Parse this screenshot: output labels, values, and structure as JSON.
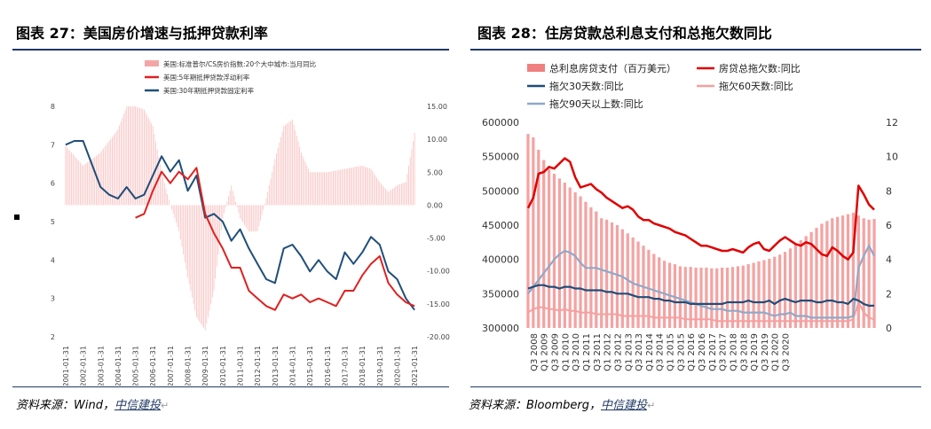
{
  "left": {
    "title": "图表 27：美国房价增速与抵押贷款利率",
    "source_label": "资料来源：Wind，",
    "source_brand": "中信建投",
    "chart_data": {
      "type": "line",
      "legend": [
        {
          "name": "美国:标准普尔/CS房价指数:20个大中城市:当月同比",
          "color": "#f4a6a6",
          "style": "bar"
        },
        {
          "name": "美国:5年期抵押贷款浮动利率",
          "color": "#e02020",
          "style": "line"
        },
        {
          "name": "美国:30年期抵押贷款固定利率",
          "color": "#1f4e79",
          "style": "line"
        }
      ],
      "legend_position": "top",
      "x_ticks": [
        "2001-01-31",
        "2002-01-31",
        "2003-01-31",
        "2004-01-31",
        "2005-01-31",
        "2006-01-31",
        "2007-01-31",
        "2008-01-31",
        "2009-01-31",
        "2010-01-31",
        "2011-01-31",
        "2012-01-31",
        "2013-01-31",
        "2014-01-31",
        "2015-01-31",
        "2016-01-31",
        "2017-01-31",
        "2018-01-31",
        "2019-01-31",
        "2020-01-31",
        "2021-01-31"
      ],
      "y_left": {
        "min": 2,
        "max": 8,
        "ticks": [
          2,
          3,
          4,
          5,
          6,
          7,
          8
        ]
      },
      "y_right": {
        "min": -20,
        "max": 15,
        "ticks": [
          "-20.00",
          "-15.00",
          "-10.00",
          "-5.00",
          "0.00",
          "5.00",
          "10.00",
          "15.00"
        ]
      },
      "hpi_yoy": [
        [
          2001.0,
          9.0
        ],
        [
          2002.0,
          6.0
        ],
        [
          2003.0,
          8.0
        ],
        [
          2004.0,
          11.5
        ],
        [
          2004.5,
          15.0
        ],
        [
          2005.0,
          15.0
        ],
        [
          2005.5,
          14.5
        ],
        [
          2006.0,
          12.0
        ],
        [
          2006.5,
          5.0
        ],
        [
          2007.0,
          0.0
        ],
        [
          2007.5,
          -4.0
        ],
        [
          2008.0,
          -11.0
        ],
        [
          2008.5,
          -17.0
        ],
        [
          2009.0,
          -19.0
        ],
        [
          2009.5,
          -13.0
        ],
        [
          2010.0,
          -2.0
        ],
        [
          2010.5,
          3.0
        ],
        [
          2011.0,
          -2.0
        ],
        [
          2011.5,
          -4.0
        ],
        [
          2012.0,
          -4.0
        ],
        [
          2012.5,
          1.0
        ],
        [
          2013.0,
          7.0
        ],
        [
          2013.5,
          12.0
        ],
        [
          2014.0,
          13.0
        ],
        [
          2014.5,
          8.0
        ],
        [
          2015.0,
          5.0
        ],
        [
          2016.0,
          5.0
        ],
        [
          2017.0,
          5.5
        ],
        [
          2018.0,
          6.0
        ],
        [
          2018.5,
          5.5
        ],
        [
          2019.0,
          3.5
        ],
        [
          2019.5,
          2.0
        ],
        [
          2020.0,
          3.0
        ],
        [
          2020.5,
          3.5
        ],
        [
          2021.0,
          11.0
        ]
      ],
      "rate_5y_arm": [
        [
          2005.0,
          5.1
        ],
        [
          2005.5,
          5.2
        ],
        [
          2006.0,
          5.8
        ],
        [
          2006.5,
          6.3
        ],
        [
          2007.0,
          6.0
        ],
        [
          2007.5,
          6.3
        ],
        [
          2008.0,
          6.1
        ],
        [
          2008.5,
          6.4
        ],
        [
          2009.0,
          5.2
        ],
        [
          2009.5,
          4.7
        ],
        [
          2010.0,
          4.3
        ],
        [
          2010.5,
          3.8
        ],
        [
          2011.0,
          3.8
        ],
        [
          2011.5,
          3.2
        ],
        [
          2012.0,
          3.0
        ],
        [
          2012.5,
          2.8
        ],
        [
          2013.0,
          2.7
        ],
        [
          2013.5,
          3.1
        ],
        [
          2014.0,
          3.0
        ],
        [
          2014.5,
          3.1
        ],
        [
          2015.0,
          2.9
        ],
        [
          2015.5,
          3.0
        ],
        [
          2016.0,
          2.9
        ],
        [
          2016.5,
          2.8
        ],
        [
          2017.0,
          3.2
        ],
        [
          2017.5,
          3.2
        ],
        [
          2018.0,
          3.6
        ],
        [
          2018.5,
          3.9
        ],
        [
          2019.0,
          4.1
        ],
        [
          2019.5,
          3.4
        ],
        [
          2020.0,
          3.1
        ],
        [
          2020.5,
          2.9
        ],
        [
          2021.0,
          2.8
        ]
      ],
      "rate_30y_fixed": [
        [
          2001.0,
          7.0
        ],
        [
          2001.5,
          7.1
        ],
        [
          2002.0,
          7.1
        ],
        [
          2002.5,
          6.5
        ],
        [
          2003.0,
          5.9
        ],
        [
          2003.5,
          5.7
        ],
        [
          2004.0,
          5.6
        ],
        [
          2004.5,
          5.9
        ],
        [
          2005.0,
          5.6
        ],
        [
          2005.5,
          5.7
        ],
        [
          2006.0,
          6.2
        ],
        [
          2006.5,
          6.7
        ],
        [
          2007.0,
          6.3
        ],
        [
          2007.5,
          6.6
        ],
        [
          2008.0,
          5.8
        ],
        [
          2008.5,
          6.2
        ],
        [
          2009.0,
          5.1
        ],
        [
          2009.5,
          5.2
        ],
        [
          2010.0,
          5.0
        ],
        [
          2010.5,
          4.5
        ],
        [
          2011.0,
          4.8
        ],
        [
          2011.5,
          4.3
        ],
        [
          2012.0,
          3.9
        ],
        [
          2012.5,
          3.5
        ],
        [
          2013.0,
          3.4
        ],
        [
          2013.5,
          4.3
        ],
        [
          2014.0,
          4.4
        ],
        [
          2014.5,
          4.1
        ],
        [
          2015.0,
          3.7
        ],
        [
          2015.5,
          4.0
        ],
        [
          2016.0,
          3.7
        ],
        [
          2016.5,
          3.5
        ],
        [
          2017.0,
          4.2
        ],
        [
          2017.5,
          3.9
        ],
        [
          2018.0,
          4.2
        ],
        [
          2018.5,
          4.6
        ],
        [
          2019.0,
          4.4
        ],
        [
          2019.5,
          3.7
        ],
        [
          2020.0,
          3.5
        ],
        [
          2020.5,
          3.0
        ],
        [
          2021.0,
          2.7
        ]
      ]
    }
  },
  "right": {
    "title": "图表 28：住房贷款总利息支付和总拖欠数同比",
    "source_label": "资料来源：Bloomberg，",
    "source_brand": "中信建投",
    "chart_data": {
      "type": "bar",
      "legend": [
        {
          "name": "总利息房贷支付（百万美元）",
          "color": "#f08080",
          "style": "bar"
        },
        {
          "name": "房贷总拖欠数:同比",
          "color": "#e00000",
          "style": "line"
        },
        {
          "name": "拖欠30天数:同比",
          "color": "#1f4e79",
          "style": "line"
        },
        {
          "name": "拖欠60天数:同比",
          "color": "#f4a0a0",
          "style": "line"
        },
        {
          "name": "拖欠90天以上数:同比",
          "color": "#8fa9c8",
          "style": "line"
        }
      ],
      "legend_position": "top",
      "x_labels": [
        "Q3 2008",
        "Q1 2009",
        "Q3 2009",
        "Q1 2010",
        "Q3 2010",
        "Q1 2011",
        "Q3 2011",
        "Q1 2012",
        "Q3 2012",
        "Q1 2013",
        "Q3 2013",
        "Q1 2014",
        "Q3 2014",
        "Q1 2015",
        "Q3 2015",
        "Q1 2016",
        "Q3 2016",
        "Q1 2017",
        "Q3 2017",
        "Q1 2018",
        "Q3 2018",
        "Q1 2019",
        "Q3 2019",
        "Q1 2020",
        "Q3 2020"
      ],
      "y_left": {
        "min": 300000,
        "max": 600000,
        "ticks": [
          "300000",
          "350000",
          "400000",
          "450000",
          "500000",
          "550000",
          "600000"
        ]
      },
      "y_right": {
        "min": 0,
        "max": 12,
        "ticks": [
          "0",
          "2",
          "4",
          "6",
          "8",
          "10",
          "12"
        ]
      },
      "interest_payments": [
        583000,
        578000,
        560000,
        545000,
        532000,
        525000,
        518000,
        512000,
        505000,
        498000,
        492000,
        484000,
        476000,
        470000,
        460000,
        458000,
        454000,
        450000,
        444000,
        438000,
        432000,
        426000,
        420000,
        414000,
        408000,
        403000,
        398000,
        395000,
        393000,
        390000,
        389000,
        389000,
        388000,
        388000,
        388000,
        387000,
        387000,
        388000,
        388000,
        389000,
        390000,
        391000,
        393000,
        395000,
        397000,
        399000,
        401000,
        404000,
        407000,
        411000,
        416000,
        422000,
        428000,
        434000,
        440000,
        446000,
        452000,
        456000,
        460000,
        462000,
        464000,
        466000,
        468000,
        464000,
        460000,
        458000,
        459000
      ],
      "total_delinquency_yoy": [
        7.0,
        7.6,
        9.0,
        9.1,
        9.4,
        9.3,
        9.6,
        9.9,
        9.7,
        8.8,
        8.2,
        8.3,
        8.4,
        8.1,
        7.9,
        7.6,
        7.4,
        7.2,
        7.0,
        7.1,
        6.9,
        6.5,
        6.3,
        6.3,
        6.1,
        6.0,
        5.9,
        5.8,
        5.6,
        5.5,
        5.4,
        5.2,
        5.0,
        4.8,
        4.8,
        4.7,
        4.6,
        4.5,
        4.5,
        4.6,
        4.5,
        4.4,
        4.7,
        4.9,
        5.0,
        4.6,
        4.5,
        4.8,
        5.1,
        5.3,
        5.1,
        4.9,
        4.8,
        5.0,
        4.9,
        4.6,
        4.3,
        4.2,
        4.7,
        4.5,
        4.2,
        4.0,
        4.4,
        8.3,
        7.8,
        7.2,
        6.9
      ],
      "d30_yoy": [
        2.3,
        2.4,
        2.5,
        2.5,
        2.4,
        2.4,
        2.3,
        2.4,
        2.4,
        2.3,
        2.3,
        2.2,
        2.2,
        2.2,
        2.2,
        2.1,
        2.1,
        2.0,
        2.0,
        2.0,
        1.9,
        1.8,
        1.8,
        1.8,
        1.7,
        1.7,
        1.6,
        1.6,
        1.5,
        1.5,
        1.5,
        1.4,
        1.4,
        1.4,
        1.4,
        1.4,
        1.4,
        1.4,
        1.5,
        1.5,
        1.5,
        1.5,
        1.6,
        1.5,
        1.5,
        1.5,
        1.6,
        1.4,
        1.6,
        1.7,
        1.6,
        1.5,
        1.6,
        1.6,
        1.6,
        1.5,
        1.5,
        1.6,
        1.6,
        1.5,
        1.5,
        1.4,
        1.7,
        1.6,
        1.4,
        1.3,
        1.3
      ],
      "d60_yoy": [
        0.9,
        1.1,
        1.2,
        1.2,
        1.1,
        1.1,
        1.0,
        1.1,
        1.0,
        1.0,
        0.9,
        0.9,
        0.9,
        0.8,
        0.8,
        0.8,
        0.8,
        0.8,
        0.7,
        0.7,
        0.7,
        0.7,
        0.7,
        0.7,
        0.6,
        0.6,
        0.6,
        0.6,
        0.6,
        0.6,
        0.5,
        0.5,
        0.5,
        0.5,
        0.5,
        0.5,
        0.4,
        0.4,
        0.4,
        0.4,
        0.4,
        0.4,
        0.4,
        0.4,
        0.4,
        0.4,
        0.4,
        0.4,
        0.4,
        0.4,
        0.4,
        0.4,
        0.4,
        0.4,
        0.4,
        0.4,
        0.4,
        0.4,
        0.4,
        0.4,
        0.4,
        0.4,
        0.5,
        1.5,
        0.9,
        0.6,
        0.5
      ],
      "d90_yoy": [
        2.0,
        2.4,
        2.8,
        3.2,
        3.6,
        4.0,
        4.3,
        4.5,
        4.4,
        4.2,
        3.8,
        3.5,
        3.5,
        3.5,
        3.4,
        3.3,
        3.2,
        3.1,
        3.0,
        2.8,
        2.6,
        2.5,
        2.4,
        2.3,
        2.2,
        2.1,
        2.0,
        1.9,
        1.8,
        1.7,
        1.6,
        1.5,
        1.4,
        1.3,
        1.2,
        1.1,
        1.1,
        1.1,
        1.0,
        1.0,
        1.0,
        0.9,
        0.9,
        0.9,
        0.9,
        0.9,
        0.8,
        0.7,
        0.8,
        0.8,
        0.9,
        0.7,
        0.7,
        0.7,
        0.6,
        0.6,
        0.6,
        0.6,
        0.6,
        0.6,
        0.6,
        0.6,
        0.7,
        3.5,
        4.2,
        4.8,
        4.2
      ]
    }
  }
}
